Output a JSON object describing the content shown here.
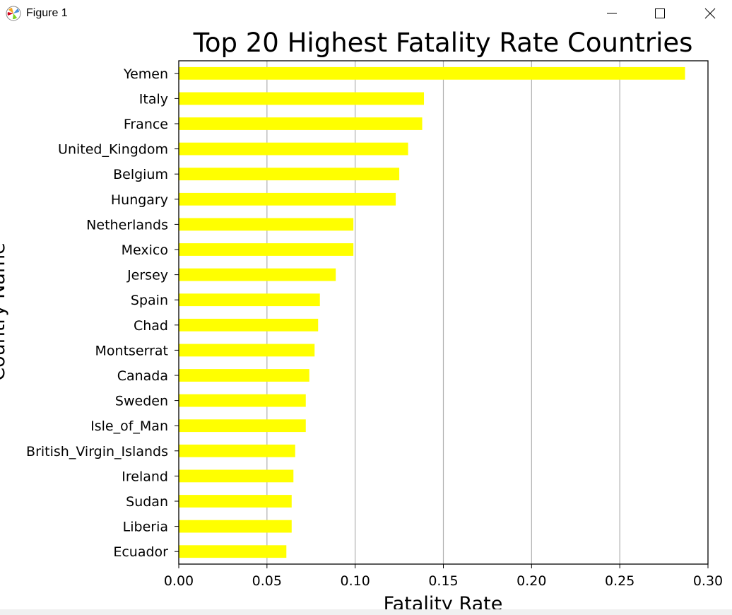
{
  "window": {
    "title": "Figure 1",
    "icon": "matplotlib-icon",
    "controls": {
      "minimize_icon": "minimize-icon",
      "maximize_icon": "maximize-icon",
      "close_icon": "close-icon"
    }
  },
  "chart_data": {
    "type": "bar",
    "orientation": "horizontal",
    "title": "Top 20 Highest Fatality Rate Countries",
    "xlabel": "Fatality Rate",
    "ylabel": "Country Name",
    "xlim": [
      0,
      0.3
    ],
    "xticks": [
      "0.00",
      "0.05",
      "0.10",
      "0.15",
      "0.20",
      "0.25",
      "0.30"
    ],
    "grid": "vertical",
    "bar_color": "#ffff00",
    "categories": [
      "Yemen",
      "Italy",
      "France",
      "United_Kingdom",
      "Belgium",
      "Hungary",
      "Netherlands",
      "Mexico",
      "Jersey",
      "Spain",
      "Chad",
      "Montserrat",
      "Canada",
      "Sweden",
      "Isle_of_Man",
      "British_Virgin_Islands",
      "Ireland",
      "Sudan",
      "Liberia",
      "Ecuador"
    ],
    "values": [
      0.287,
      0.139,
      0.138,
      0.13,
      0.125,
      0.123,
      0.099,
      0.099,
      0.089,
      0.08,
      0.079,
      0.077,
      0.074,
      0.072,
      0.072,
      0.066,
      0.065,
      0.064,
      0.064,
      0.061
    ]
  }
}
